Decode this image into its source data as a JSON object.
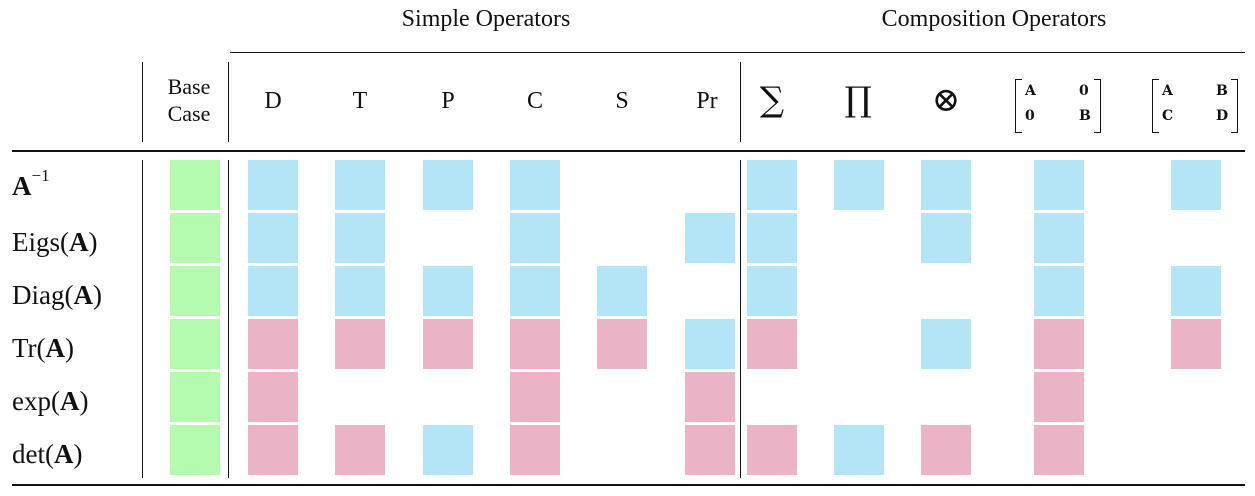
{
  "headers": {
    "simple_group": "Simple Operators",
    "composition_group": "Composition Operators",
    "base_case_line1": "Base",
    "base_case_line2": "Case",
    "simple_columns": [
      "D",
      "T",
      "P",
      "C",
      "S",
      "Pr"
    ],
    "composition_columns": [
      {
        "symbol": "∑",
        "icon": "sum-icon"
      },
      {
        "symbol": "∏",
        "icon": "product-icon"
      },
      {
        "symbol": "⊗",
        "icon": "kronecker-product-icon"
      },
      {
        "matrix": [
          "A",
          "0",
          "0",
          "B"
        ],
        "icon": "block-diagonal-matrix-icon"
      },
      {
        "matrix": [
          "A",
          "B",
          "C",
          "D"
        ],
        "icon": "block-matrix-icon"
      }
    ]
  },
  "rows": [
    {
      "func": "A",
      "arg": "",
      "sup": "−1"
    },
    {
      "func": "Eigs(",
      "arg": "A",
      "close": ")"
    },
    {
      "func": "Diag(",
      "arg": "A",
      "close": ")"
    },
    {
      "func": "Tr(",
      "arg": "A",
      "close": ")"
    },
    {
      "func": "exp(",
      "arg": "A",
      "close": ")"
    },
    {
      "func": "det(",
      "arg": "A",
      "close": ")"
    }
  ],
  "grid": [
    [
      "g",
      "b",
      "b",
      "b",
      "b",
      "",
      "",
      "b",
      "b",
      "b",
      "b",
      "b"
    ],
    [
      "g",
      "b",
      "b",
      "",
      "b",
      "",
      "b",
      "b",
      "",
      "b",
      "b",
      ""
    ],
    [
      "g",
      "b",
      "b",
      "b",
      "b",
      "b",
      "",
      "b",
      "",
      "",
      "b",
      "b"
    ],
    [
      "g",
      "p",
      "p",
      "p",
      "p",
      "p",
      "b",
      "p",
      "",
      "b",
      "p",
      "p"
    ],
    [
      "g",
      "p",
      "",
      "",
      "p",
      "",
      "p",
      "",
      "",
      "",
      "p",
      ""
    ],
    [
      "g",
      "p",
      "p",
      "b",
      "p",
      "",
      "p",
      "p",
      "b",
      "p",
      "p",
      ""
    ]
  ],
  "colors": {
    "g": "#b4fbaf",
    "b": "#b3e5f7",
    "p": "#ebb4c6"
  }
}
